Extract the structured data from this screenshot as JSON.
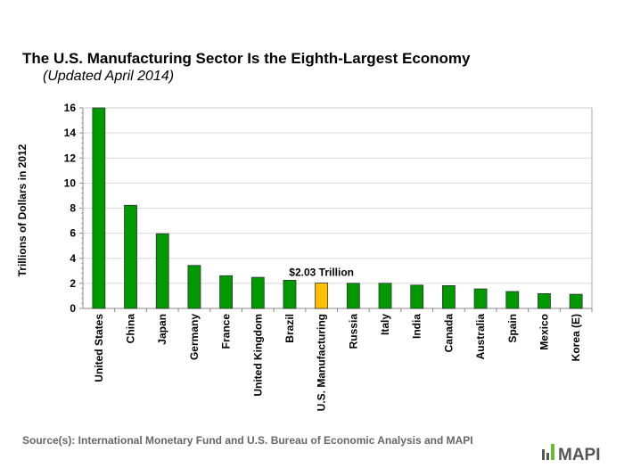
{
  "chart_data": {
    "type": "bar",
    "title": "The U.S. Manufacturing Sector Is the Eighth-Largest Economy",
    "subtitle": "(Updated April 2014)",
    "ylabel": "Trillions  of Dollars  in 2012",
    "xlabel": "",
    "ylim": [
      0,
      16
    ],
    "yticks": [
      "0",
      "2",
      "4",
      "6",
      "8",
      "10",
      "12",
      "14",
      "16"
    ],
    "grid": true,
    "categories": [
      "United States",
      "China",
      "Japan",
      "Germany",
      "France",
      "United Kingdom",
      "Brazil",
      "U.S. Manufacturing",
      "Russia",
      "Italy",
      "India",
      "Canada",
      "Australia",
      "Spain",
      "Mexico",
      "Korea (E)"
    ],
    "values": [
      16.2,
      8.23,
      5.96,
      3.43,
      2.61,
      2.48,
      2.25,
      2.03,
      2.01,
      2.01,
      1.86,
      1.82,
      1.56,
      1.35,
      1.18,
      1.13
    ],
    "highlight_index": 7,
    "annotation": "$2.03  Trillion",
    "colors": {
      "bar": "#009900",
      "highlight": "#FFC000",
      "grid": "#D9D9D9"
    }
  },
  "source": "Source(s): International Monetary Fund and U.S. Bureau of Economic Analysis and MAPI",
  "logo": {
    "text": "MAPI",
    "colors": {
      "text": "#555555",
      "accent": "#66BB33"
    }
  }
}
